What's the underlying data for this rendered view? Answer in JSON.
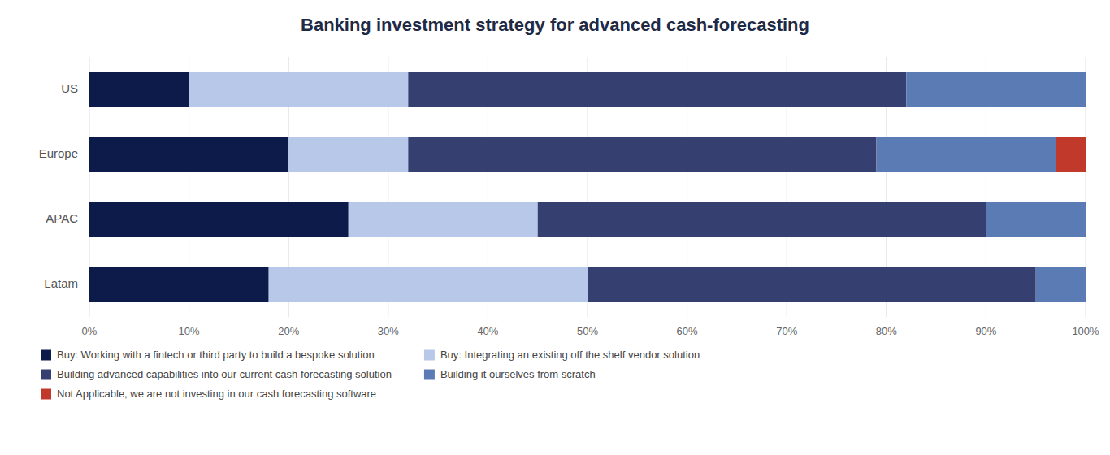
{
  "chart_data": {
    "type": "bar",
    "orientation": "horizontal",
    "stacked": true,
    "title": "Banking investment strategy for advanced cash-forecasting",
    "categories": [
      "US",
      "Europe",
      "APAC",
      "Latam"
    ],
    "series": [
      {
        "name": "Buy: Working with a fintech or third party to build a bespoke solution",
        "color": "#0d1b4b",
        "values": [
          10,
          20,
          26,
          18
        ]
      },
      {
        "name": "Buy: Integrating an existing off the shelf vendor solution",
        "color": "#b8c8e8",
        "values": [
          22,
          12,
          19,
          32
        ]
      },
      {
        "name": "Building advanced capabilities into our current cash forecasting solution",
        "color": "#354070",
        "values": [
          50,
          47,
          45,
          45
        ]
      },
      {
        "name": "Building it ourselves from scratch",
        "color": "#5b7bb5",
        "values": [
          18,
          18,
          10,
          5
        ]
      },
      {
        "name": "Not Applicable, we are not investing in our cash forecasting software",
        "color": "#c0392b",
        "values": [
          0,
          3,
          0,
          0
        ]
      }
    ],
    "xlim": [
      0,
      100
    ],
    "xticks": [
      {
        "value": 0,
        "label": "0%"
      },
      {
        "value": 10,
        "label": "10%"
      },
      {
        "value": 20,
        "label": "20%"
      },
      {
        "value": 30,
        "label": "30%"
      },
      {
        "value": 40,
        "label": "40%"
      },
      {
        "value": 50,
        "label": "50%"
      },
      {
        "value": 60,
        "label": "60%"
      },
      {
        "value": 70,
        "label": "70%"
      },
      {
        "value": 80,
        "label": "80%"
      },
      {
        "value": 90,
        "label": "90%"
      },
      {
        "value": 100,
        "label": "100%"
      }
    ],
    "grid": true,
    "legend": "bottom"
  }
}
